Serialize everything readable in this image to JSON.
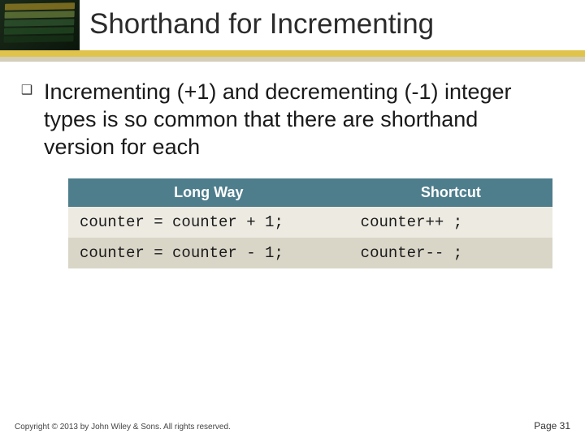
{
  "title": "Shorthand for Incrementing",
  "bullet_glyph": "❑",
  "bullet_text": "Incrementing (+1) and decrementing (-1) integer types is so common that there are shorthand version for each",
  "table": {
    "header_bg": "#4e7d8c",
    "header_fg": "#ffffff",
    "row_bg_even": "#eceae1",
    "row_bg_odd": "#d9d6c8",
    "columns": [
      "Long Way",
      "Shortcut"
    ],
    "rows": [
      [
        "counter = counter + 1;",
        "counter++ ;"
      ],
      [
        "counter = counter - 1;",
        "counter-- ;"
      ]
    ]
  },
  "footer": {
    "copyright": "Copyright © 2013 by John Wiley & Sons. All rights reserved.",
    "page_label": "Page 31"
  }
}
